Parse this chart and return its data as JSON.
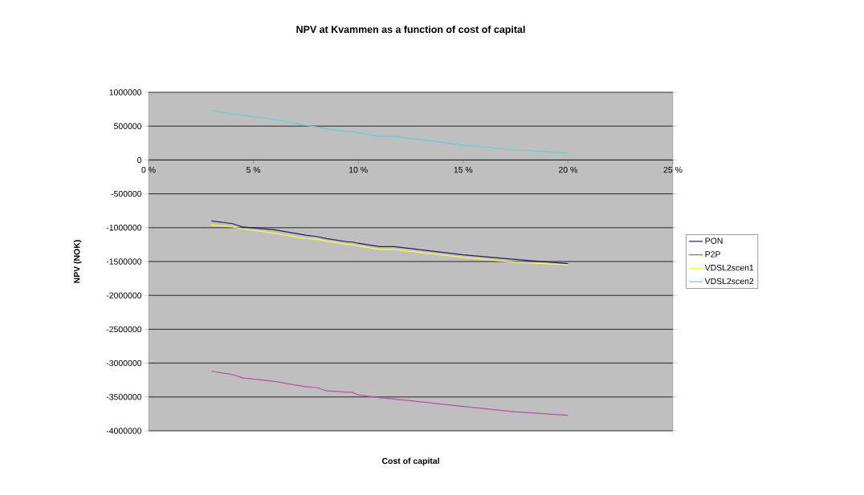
{
  "chart_data": {
    "type": "line",
    "title": "NPV at Kvammen as a function of cost of capital",
    "xlabel": "Cost of capital",
    "ylabel": "NPV (NOK)",
    "x": [
      3,
      4,
      4.5,
      6,
      7.5,
      8,
      8.5,
      9.5,
      9.7,
      10,
      11,
      11.7,
      15,
      17.5,
      20
    ],
    "series": [
      {
        "name": "PON",
        "color": "#1f1f6e",
        "values": [
          -900000,
          -940000,
          -990000,
          -1030000,
          -1110000,
          -1130000,
          -1160000,
          -1210000,
          -1210000,
          -1230000,
          -1280000,
          -1280000,
          -1400000,
          -1470000,
          -1530000
        ]
      },
      {
        "name": "P2P",
        "color": "#b94fb0",
        "values": [
          -3120000,
          -3170000,
          -3220000,
          -3270000,
          -3350000,
          -3360000,
          -3410000,
          -3430000,
          -3430000,
          -3470000,
          -3510000,
          -3530000,
          -3640000,
          -3720000,
          -3770000
        ]
      },
      {
        "name": "VDSL2scen1",
        "color": "#ffff33",
        "values": [
          -960000,
          -990000,
          -1020000,
          -1080000,
          -1160000,
          -1170000,
          -1200000,
          -1250000,
          -1250000,
          -1270000,
          -1320000,
          -1320000,
          -1440000,
          -1510000,
          -1550000
        ]
      },
      {
        "name": "VDSL2scen2",
        "color": "#5fd0e0",
        "values": [
          730000,
          680000,
          660000,
          600000,
          510000,
          490000,
          460000,
          420000,
          420000,
          400000,
          350000,
          350000,
          220000,
          150000,
          100000
        ]
      }
    ],
    "xlim": [
      0,
      25
    ],
    "xticks": [
      {
        "value": 0,
        "label": "0 %"
      },
      {
        "value": 5,
        "label": "5 %"
      },
      {
        "value": 10,
        "label": "10 %"
      },
      {
        "value": 15,
        "label": "15 %"
      },
      {
        "value": 20,
        "label": "20 %"
      },
      {
        "value": 25,
        "label": "25 %"
      }
    ],
    "ylim": [
      -4000000,
      1000000
    ],
    "yticks": [
      -4000000,
      -3500000,
      -3000000,
      -2500000,
      -2000000,
      -1500000,
      -1000000,
      -500000,
      0,
      500000,
      1000000
    ],
    "grid": "y",
    "legend": "right",
    "marker": "none",
    "line_style": "solid"
  }
}
